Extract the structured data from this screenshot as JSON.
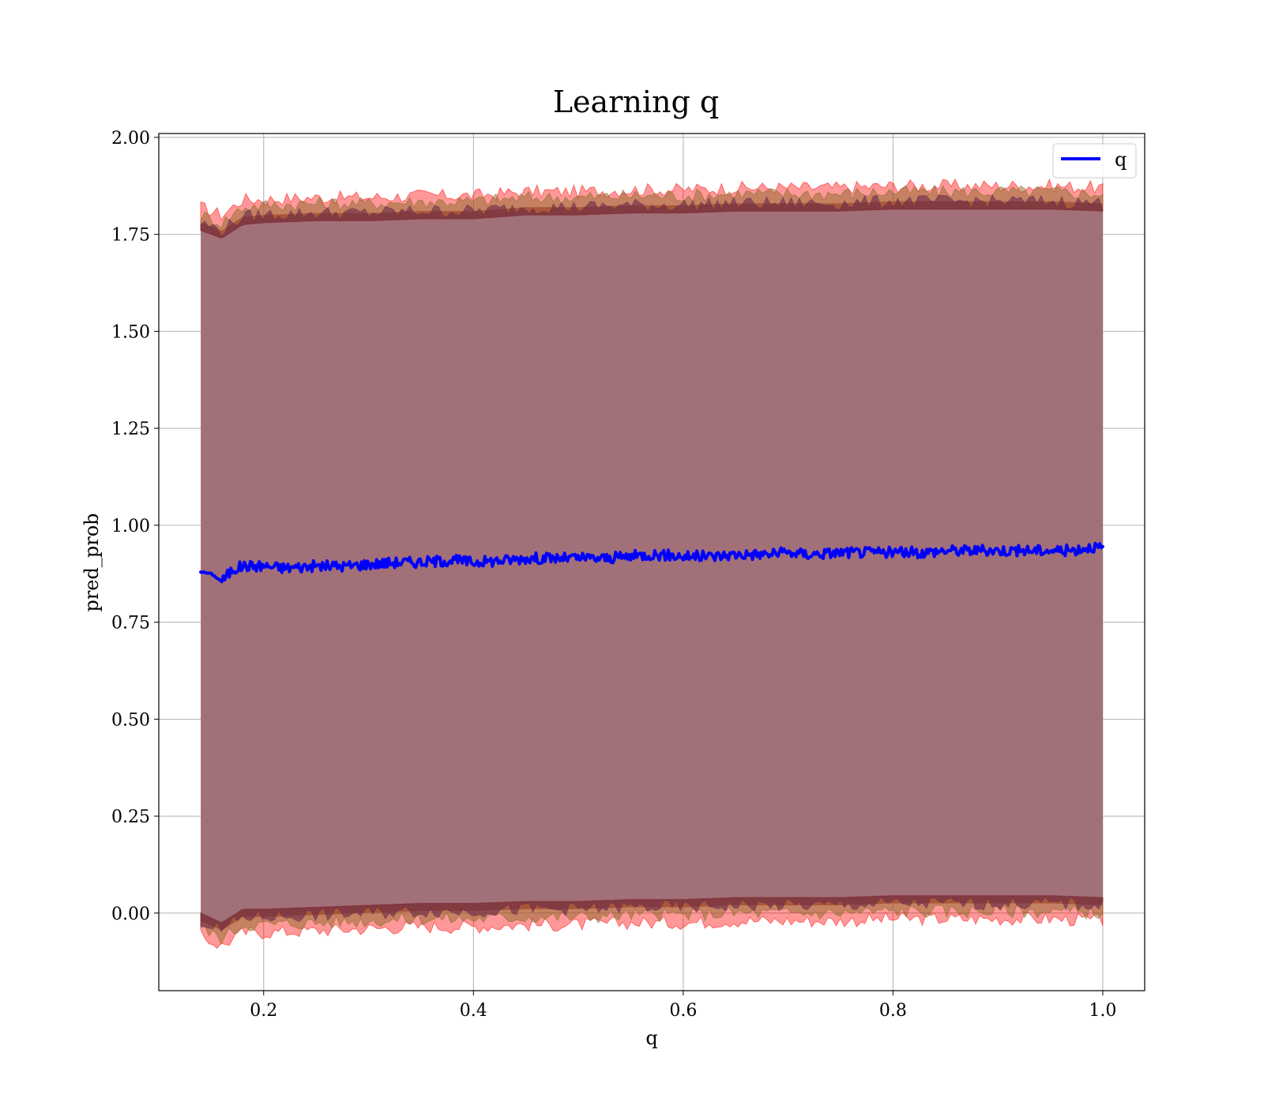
{
  "chart_data": {
    "type": "line",
    "title": "Learning q",
    "xlabel": "q",
    "ylabel": "pred_prob",
    "xlim": [
      0.1,
      1.04
    ],
    "ylim": [
      -0.2,
      2.01
    ],
    "xticks": [
      0.2,
      0.4,
      0.6,
      0.8,
      1.0
    ],
    "xtick_labels": [
      "0.2",
      "0.4",
      "0.6",
      "0.8",
      "1.0"
    ],
    "yticks": [
      0.0,
      0.25,
      0.5,
      0.75,
      1.0,
      1.25,
      1.5,
      1.75,
      2.0
    ],
    "ytick_labels": [
      "0.00",
      "0.25",
      "0.50",
      "0.75",
      "1.00",
      "1.25",
      "1.50",
      "1.75",
      "2.00"
    ],
    "grid": true,
    "legend": {
      "placement": "top-right",
      "entries": [
        "q"
      ]
    },
    "series": [
      {
        "name": "q",
        "color": "#0000ff",
        "x": [
          0.14,
          0.15,
          0.16,
          0.17,
          0.18,
          0.2,
          0.22,
          0.25,
          0.28,
          0.3,
          0.33,
          0.35,
          0.38,
          0.4,
          0.43,
          0.45,
          0.48,
          0.5,
          0.53,
          0.55,
          0.57,
          0.6,
          0.63,
          0.65,
          0.68,
          0.7,
          0.72,
          0.75,
          0.78,
          0.8,
          0.83,
          0.85,
          0.88,
          0.9,
          0.93,
          0.95,
          0.97,
          0.99,
          1.0
        ],
        "y": [
          0.88,
          0.875,
          0.855,
          0.885,
          0.895,
          0.895,
          0.89,
          0.895,
          0.895,
          0.9,
          0.905,
          0.905,
          0.91,
          0.905,
          0.91,
          0.915,
          0.915,
          0.915,
          0.915,
          0.92,
          0.925,
          0.92,
          0.92,
          0.925,
          0.925,
          0.93,
          0.925,
          0.93,
          0.93,
          0.93,
          0.93,
          0.935,
          0.935,
          0.935,
          0.935,
          0.935,
          0.935,
          0.945,
          0.94
        ]
      }
    ],
    "bands": [
      {
        "color": "#ff0000",
        "opacity": 0.4,
        "x": [
          0.14,
          0.16,
          0.18,
          0.2,
          0.25,
          0.3,
          0.35,
          0.4,
          0.45,
          0.5,
          0.55,
          0.6,
          0.65,
          0.7,
          0.75,
          0.8,
          0.85,
          0.9,
          0.95,
          1.0
        ],
        "upper": [
          1.82,
          1.8,
          1.84,
          1.84,
          1.845,
          1.845,
          1.85,
          1.85,
          1.86,
          1.86,
          1.865,
          1.865,
          1.87,
          1.87,
          1.87,
          1.875,
          1.875,
          1.875,
          1.875,
          1.87
        ],
        "lower": [
          -0.06,
          -0.085,
          -0.05,
          -0.05,
          -0.045,
          -0.04,
          -0.035,
          -0.035,
          -0.03,
          -0.03,
          -0.025,
          -0.025,
          -0.02,
          -0.02,
          -0.02,
          -0.015,
          -0.015,
          -0.015,
          -0.015,
          -0.02
        ]
      },
      {
        "color": "#8b6a2a",
        "opacity": 0.5,
        "x": [
          0.14,
          0.16,
          0.18,
          0.2,
          0.25,
          0.3,
          0.35,
          0.4,
          0.45,
          0.5,
          0.55,
          0.6,
          0.65,
          0.7,
          0.75,
          0.8,
          0.85,
          0.9,
          0.95,
          1.0
        ],
        "upper": [
          1.8,
          1.78,
          1.82,
          1.825,
          1.83,
          1.83,
          1.835,
          1.835,
          1.845,
          1.845,
          1.85,
          1.85,
          1.855,
          1.855,
          1.855,
          1.86,
          1.86,
          1.86,
          1.86,
          1.855
        ],
        "lower": [
          -0.04,
          -0.065,
          -0.03,
          -0.03,
          -0.025,
          -0.02,
          -0.015,
          -0.015,
          -0.01,
          -0.01,
          -0.005,
          -0.005,
          0.0,
          0.0,
          0.0,
          0.005,
          0.005,
          0.005,
          0.005,
          0.0
        ]
      },
      {
        "color": "#6a2a4a",
        "opacity": 0.6,
        "x": [
          0.14,
          0.16,
          0.18,
          0.2,
          0.25,
          0.3,
          0.35,
          0.4,
          0.45,
          0.5,
          0.55,
          0.6,
          0.65,
          0.7,
          0.75,
          0.8,
          0.85,
          0.9,
          0.95,
          1.0
        ],
        "upper": [
          1.78,
          1.76,
          1.795,
          1.8,
          1.805,
          1.805,
          1.81,
          1.81,
          1.82,
          1.82,
          1.825,
          1.825,
          1.83,
          1.83,
          1.83,
          1.835,
          1.835,
          1.835,
          1.835,
          1.83
        ],
        "lower": [
          -0.02,
          -0.045,
          -0.01,
          -0.01,
          -0.005,
          0.0,
          0.005,
          0.005,
          0.01,
          0.01,
          0.015,
          0.015,
          0.02,
          0.02,
          0.02,
          0.025,
          0.025,
          0.025,
          0.025,
          0.02
        ]
      }
    ],
    "fill_color": "#a27079"
  }
}
